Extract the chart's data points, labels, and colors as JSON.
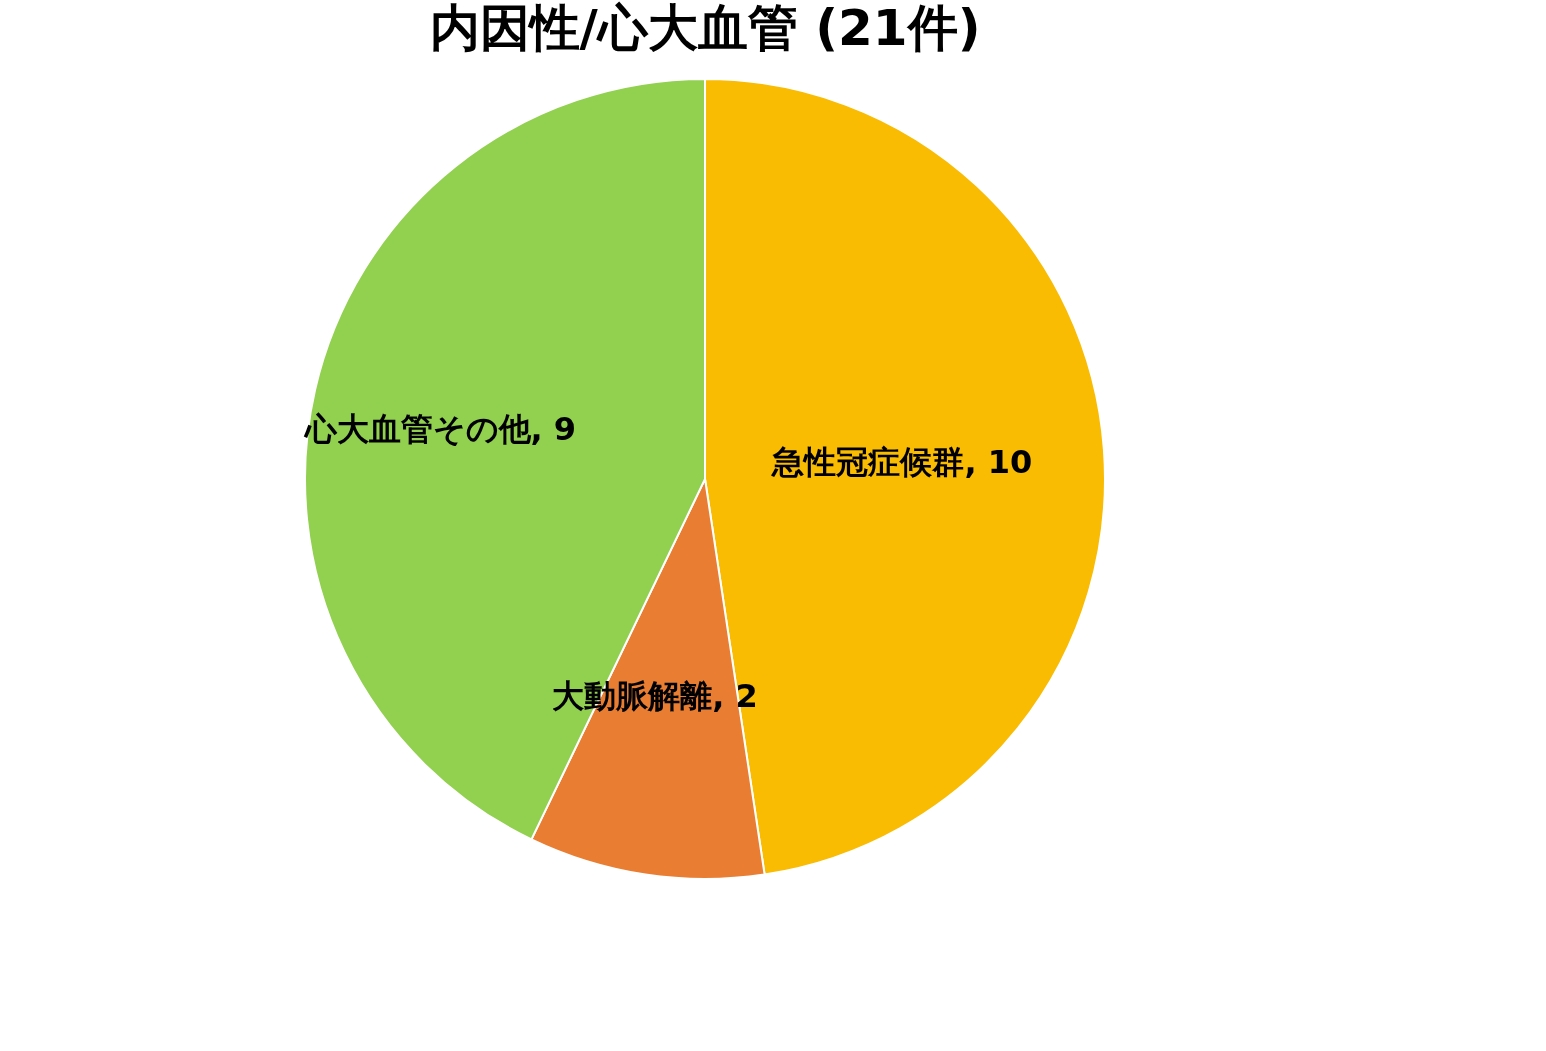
{
  "chart_data": {
    "type": "pie",
    "title": "内因性/心大血管 (21件)",
    "categories": [
      "急性冠症候群",
      "大動脈解離",
      "心大血管その他"
    ],
    "values": [
      10,
      2,
      9
    ],
    "value_labels": [
      ", 10",
      ", 2",
      ", 9"
    ],
    "colors": [
      "#f9bc02",
      "#e97d32",
      "#92d050"
    ],
    "legend": false
  }
}
